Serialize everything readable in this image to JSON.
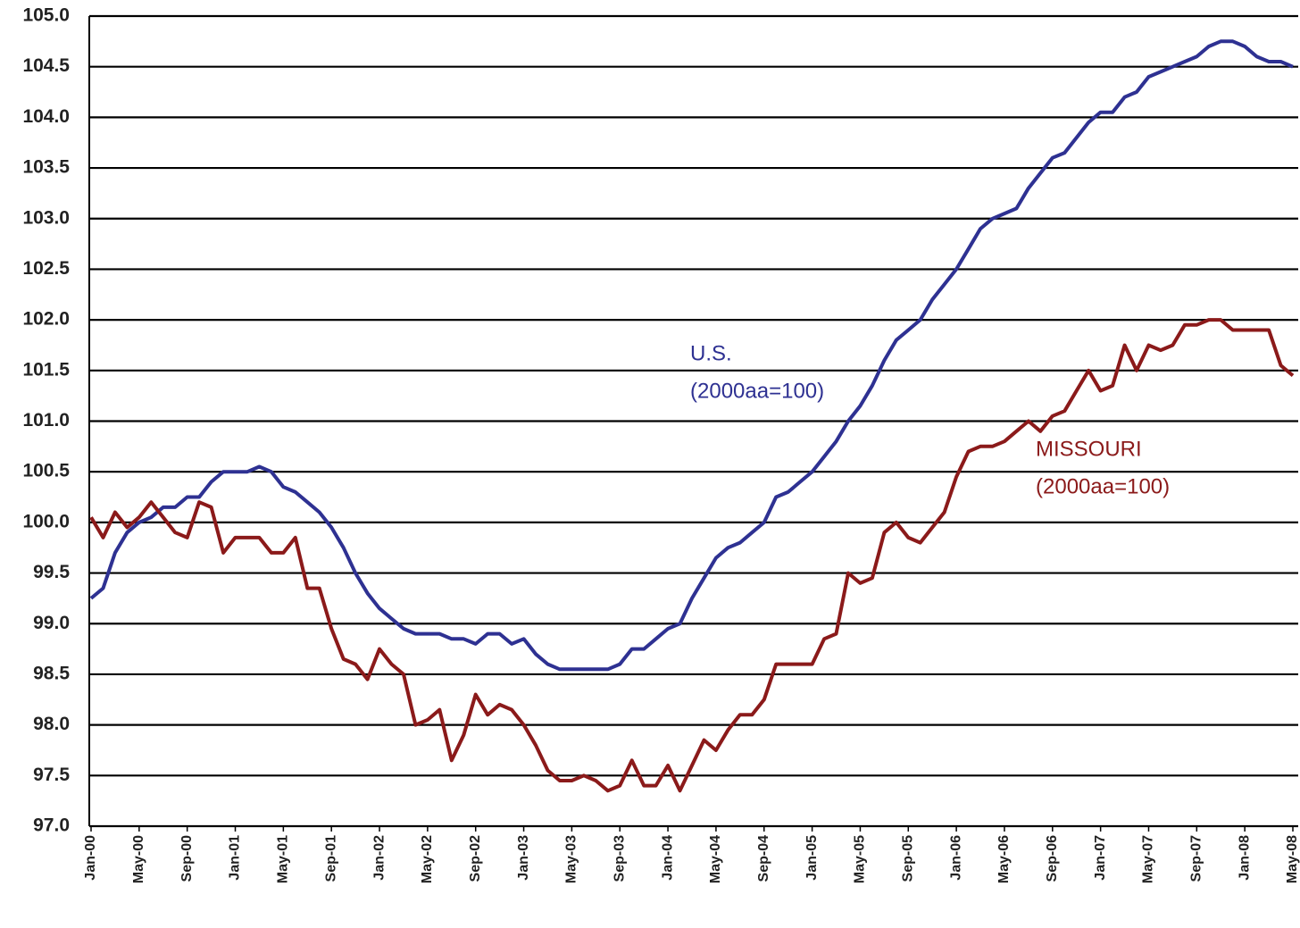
{
  "chart_data": {
    "type": "line",
    "categories": [
      "Jan-00",
      null,
      null,
      null,
      "May-00",
      null,
      null,
      null,
      "Sep-00",
      null,
      null,
      null,
      "Jan-01",
      null,
      null,
      null,
      "May-01",
      null,
      null,
      null,
      "Sep-01",
      null,
      null,
      null,
      "Jan-02",
      null,
      null,
      null,
      "May-02",
      null,
      null,
      null,
      "Sep-02",
      null,
      null,
      null,
      "Jan-03",
      null,
      null,
      null,
      "May-03",
      null,
      null,
      null,
      "Sep-03",
      null,
      null,
      null,
      "Jan-04",
      null,
      null,
      null,
      "May-04",
      null,
      null,
      null,
      "Sep-04",
      null,
      null,
      null,
      "Jan-05",
      null,
      null,
      null,
      "May-05",
      null,
      null,
      null,
      "Sep-05",
      null,
      null,
      null,
      "Jan-06",
      null,
      null,
      null,
      "May-06",
      null,
      null,
      null,
      "Sep-06",
      null,
      null,
      null,
      "Jan-07",
      null,
      null,
      null,
      "May-07",
      null,
      null,
      null,
      "Sep-07",
      null,
      null,
      null,
      "Jan-08",
      null,
      null,
      null,
      "May-08"
    ],
    "series": [
      {
        "name": "U.S.",
        "color": "#2e3192",
        "values": [
          99.25,
          99.35,
          99.7,
          99.9,
          100.0,
          100.05,
          100.15,
          100.15,
          100.25,
          100.25,
          100.4,
          100.5,
          100.5,
          100.5,
          100.55,
          100.5,
          100.35,
          100.3,
          100.2,
          100.1,
          99.95,
          99.75,
          99.5,
          99.3,
          99.15,
          99.05,
          98.95,
          98.9,
          98.9,
          98.9,
          98.85,
          98.85,
          98.8,
          98.9,
          98.9,
          98.8,
          98.85,
          98.7,
          98.6,
          98.55,
          98.55,
          98.55,
          98.55,
          98.55,
          98.6,
          98.75,
          98.75,
          98.85,
          98.95,
          99.0,
          99.25,
          99.45,
          99.65,
          99.75,
          99.8,
          99.9,
          100.0,
          100.25,
          100.3,
          100.4,
          100.5,
          100.65,
          100.8,
          101.0,
          101.15,
          101.35,
          101.6,
          101.8,
          101.9,
          102.0,
          102.2,
          102.35,
          102.5,
          102.7,
          102.9,
          103.0,
          103.05,
          103.1,
          103.3,
          103.45,
          103.6,
          103.65,
          103.8,
          103.95,
          104.05,
          104.05,
          104.2,
          104.25,
          104.4,
          104.45,
          104.5,
          104.55,
          104.6,
          104.7,
          104.75,
          104.75,
          104.7,
          104.6,
          104.55,
          104.55,
          104.5
        ]
      },
      {
        "name": "MISSOURI",
        "color": "#8b1a1a",
        "values": [
          100.05,
          99.85,
          100.1,
          99.95,
          100.05,
          100.2,
          100.05,
          99.9,
          99.85,
          100.2,
          100.15,
          99.7,
          99.85,
          99.85,
          99.85,
          99.7,
          99.7,
          99.85,
          99.35,
          99.35,
          98.95,
          98.65,
          98.6,
          98.45,
          98.75,
          98.6,
          98.5,
          98.0,
          98.05,
          98.15,
          97.65,
          97.9,
          98.3,
          98.1,
          98.2,
          98.15,
          98.0,
          97.8,
          97.55,
          97.45,
          97.45,
          97.5,
          97.45,
          97.35,
          97.4,
          97.65,
          97.4,
          97.4,
          97.6,
          97.35,
          97.6,
          97.85,
          97.75,
          97.95,
          98.1,
          98.1,
          98.25,
          98.6,
          98.6,
          98.6,
          98.6,
          98.85,
          98.9,
          99.5,
          99.4,
          99.45,
          99.9,
          100.0,
          99.85,
          99.8,
          99.95,
          100.1,
          100.45,
          100.7,
          100.75,
          100.75,
          100.8,
          100.9,
          101.0,
          100.9,
          101.05,
          101.1,
          101.3,
          101.5,
          101.3,
          101.35,
          101.75,
          101.5,
          101.75,
          101.7,
          101.75,
          101.95,
          101.95,
          102.0,
          102.0,
          101.9,
          101.9,
          101.9,
          101.9,
          101.55,
          101.45
        ]
      }
    ],
    "annotations": [
      {
        "lines": [
          "U.S.",
          "(2000aa=100)"
        ],
        "color": "#2e3192"
      },
      {
        "lines": [
          "MISSOURI",
          "(2000aa=100)"
        ],
        "color": "#8b1a1a"
      }
    ],
    "ylim": [
      97,
      105
    ],
    "yticks": [
      {
        "value": 97,
        "label": "97.0"
      },
      97.5,
      {
        "value": 98,
        "label": "98.0"
      },
      98.5,
      {
        "value": 99,
        "label": "99.0"
      },
      99.5,
      {
        "value": 100,
        "label": "100.0"
      },
      100.5,
      {
        "value": 101,
        "label": "101.0"
      },
      101.5,
      {
        "value": 102,
        "label": "102.0"
      },
      102.5,
      {
        "value": 103,
        "label": "103.0"
      },
      103.5,
      {
        "value": 104,
        "label": "104.0"
      },
      104.5,
      {
        "value": 105,
        "label": "105.0"
      }
    ],
    "grid": true
  }
}
